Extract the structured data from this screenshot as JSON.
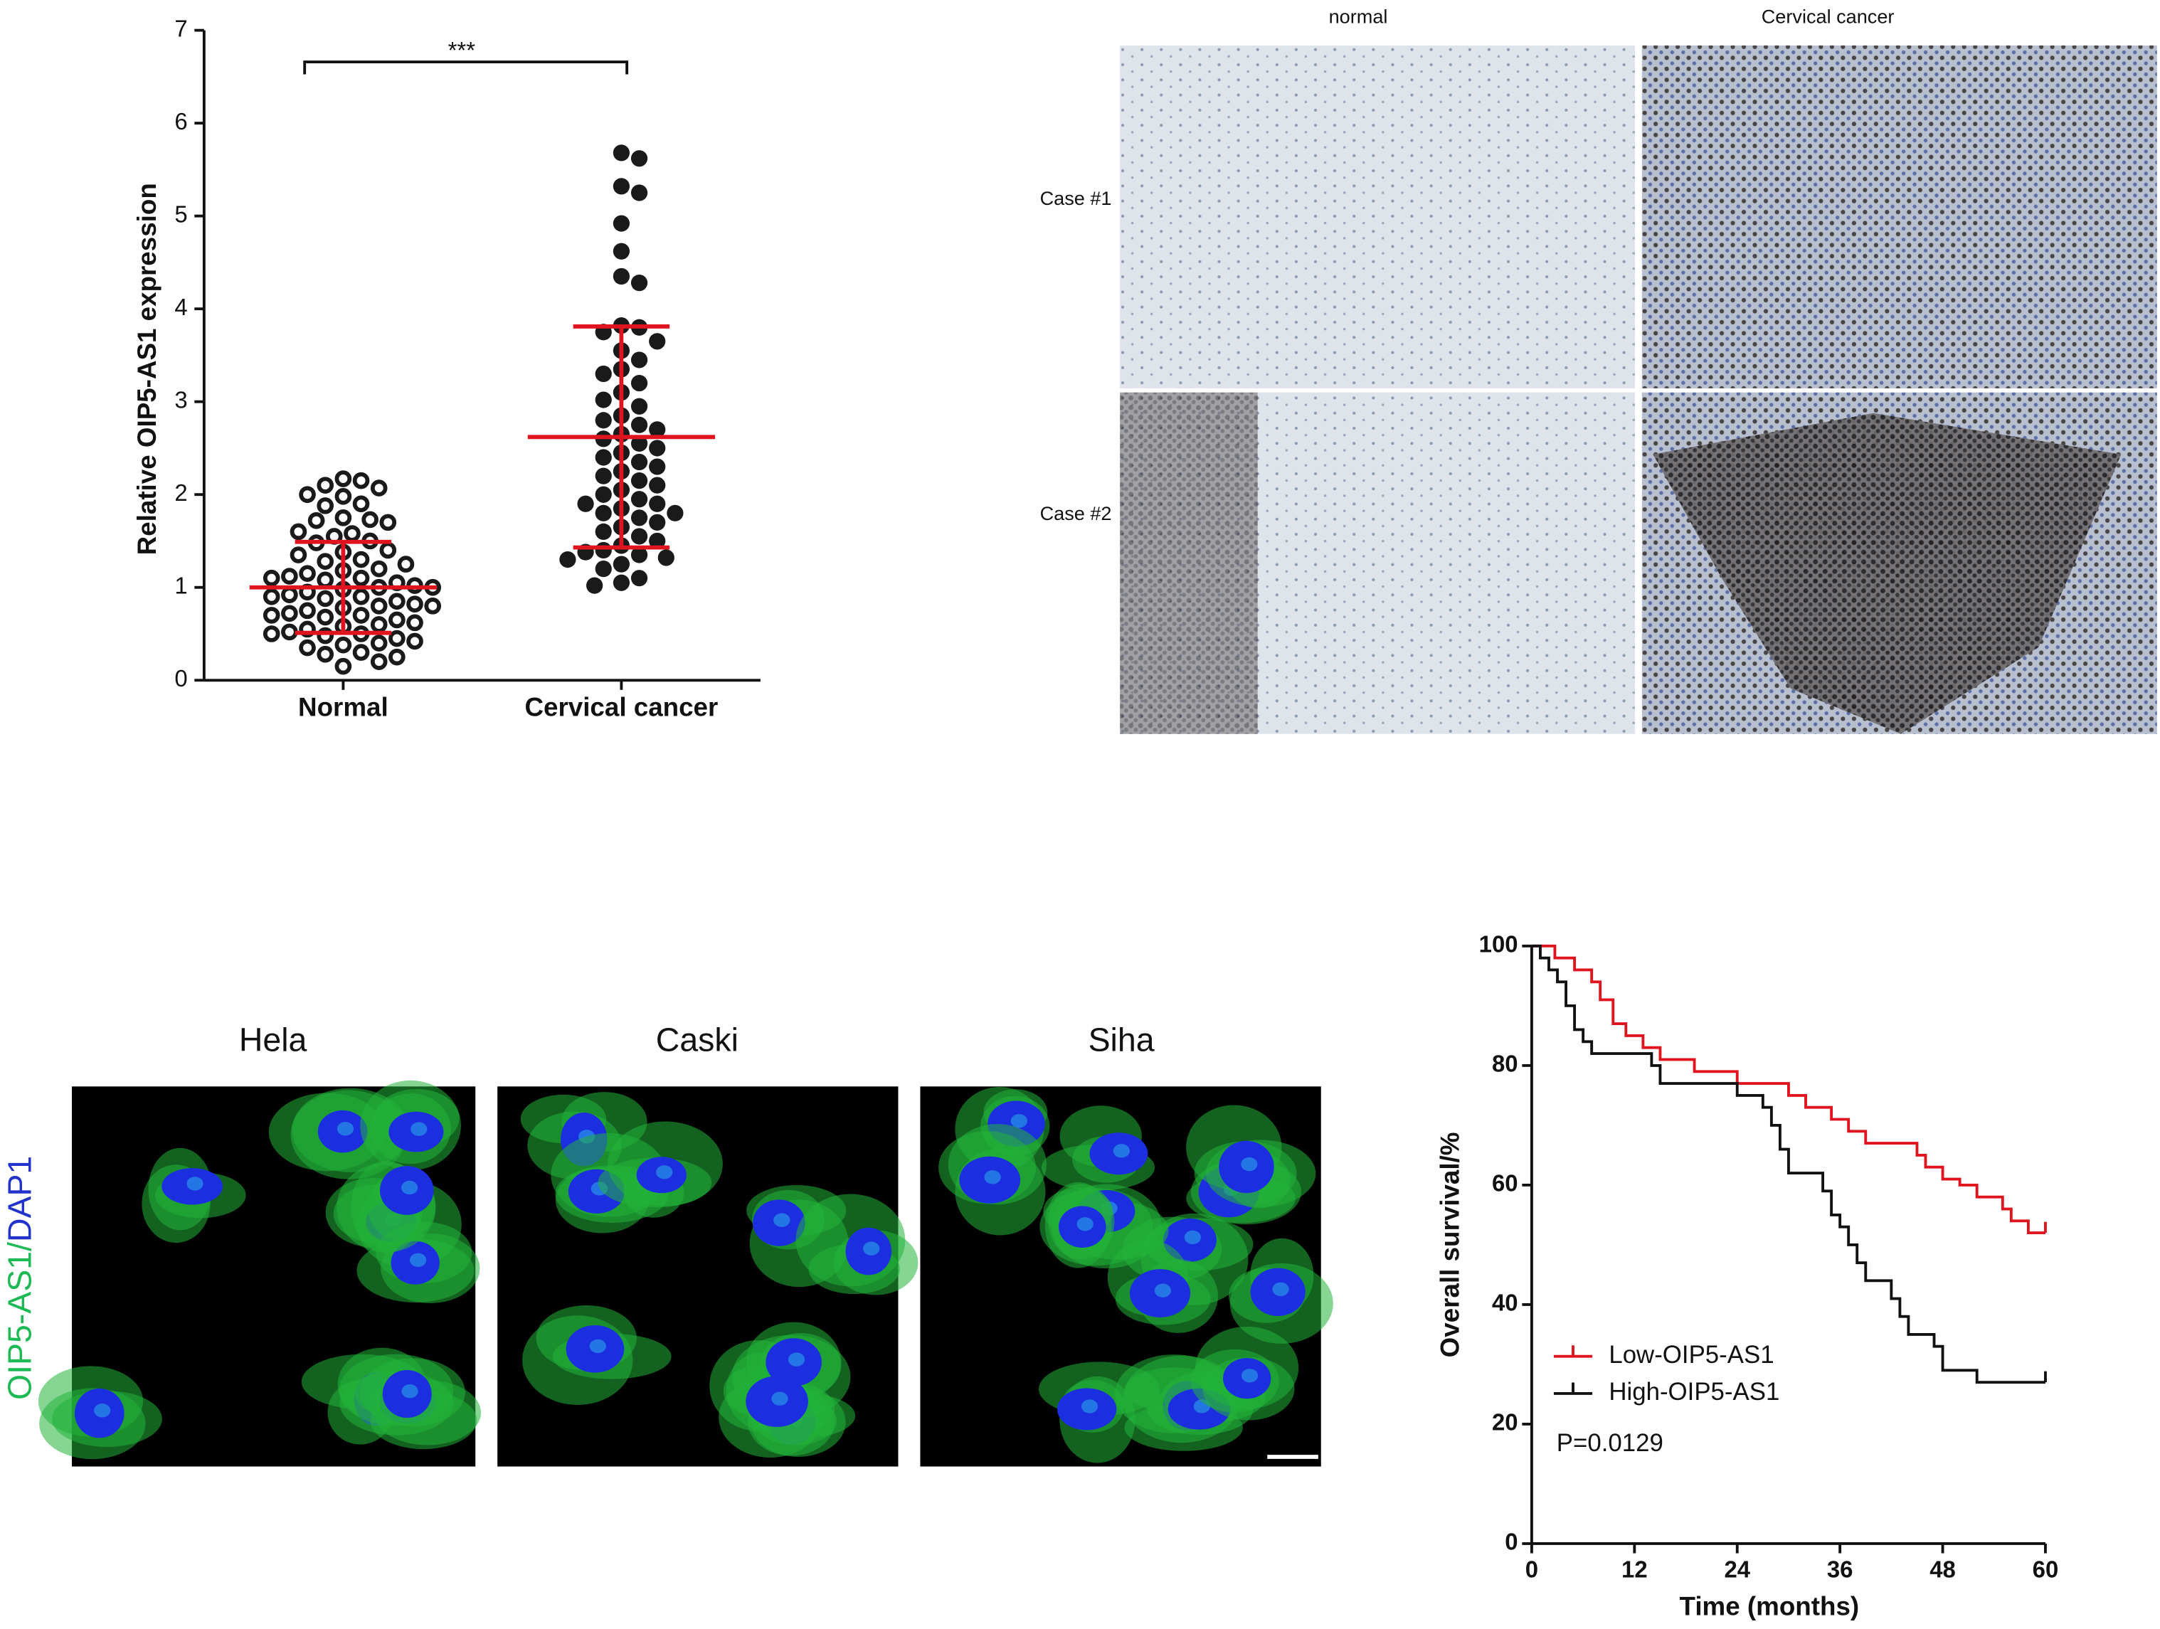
{
  "chart_data": [
    {
      "type": "dotplot",
      "ylabel": "Relative OIP5-AS1 expression",
      "annotation": "***",
      "categories": [
        "Normal",
        "Cervical cancer"
      ],
      "values": [
        [
          2.17,
          2.15,
          2.1,
          2.07,
          2.0,
          1.98,
          1.9,
          1.88,
          1.75,
          1.73,
          1.72,
          1.7,
          1.6,
          1.58,
          1.55,
          1.5,
          1.48,
          1.4,
          1.38,
          1.35,
          1.3,
          1.28,
          1.25,
          1.2,
          1.18,
          1.15,
          1.12,
          1.1,
          1.1,
          1.08,
          1.05,
          1.02,
          1.0,
          1.0,
          0.98,
          0.95,
          0.92,
          0.9,
          0.9,
          0.88,
          0.85,
          0.82,
          0.8,
          0.8,
          0.78,
          0.75,
          0.72,
          0.7,
          0.7,
          0.68,
          0.65,
          0.62,
          0.6,
          0.58,
          0.55,
          0.52,
          0.5,
          0.5,
          0.48,
          0.45,
          0.42,
          0.4,
          0.38,
          0.35,
          0.3,
          0.28,
          0.25,
          0.2,
          0.15
        ],
        [
          5.68,
          5.62,
          5.32,
          5.25,
          4.92,
          4.62,
          4.35,
          4.28,
          3.82,
          3.8,
          3.75,
          3.65,
          3.55,
          3.45,
          3.35,
          3.3,
          3.2,
          3.1,
          3.02,
          2.95,
          2.85,
          2.8,
          2.75,
          2.7,
          2.65,
          2.6,
          2.55,
          2.5,
          2.45,
          2.4,
          2.35,
          2.3,
          2.25,
          2.2,
          2.15,
          2.1,
          2.05,
          2.0,
          1.95,
          1.9,
          1.9,
          1.85,
          1.8,
          1.8,
          1.75,
          1.7,
          1.65,
          1.6,
          1.55,
          1.5,
          1.45,
          1.4,
          1.38,
          1.35,
          1.32,
          1.3,
          1.25,
          1.2,
          1.1,
          1.05,
          1.02
        ]
      ],
      "mean": [
        1.0,
        2.62
      ],
      "sd": [
        0.49,
        1.19
      ],
      "ylim": [
        0,
        7
      ],
      "yticks": [
        0,
        1,
        2,
        3,
        4,
        5,
        6,
        7
      ],
      "marker_fill": [
        "#ffffff",
        "#1a1a1a"
      ],
      "marker_edge": "#1a1a1a",
      "summary_color": "#e0141e"
    },
    {
      "type": "line",
      "step": true,
      "xlabel": "Time (months)",
      "ylabel": "Overall survival/%",
      "annotation": "P=0.0129",
      "xlim": [
        0,
        60
      ],
      "xticks": [
        0,
        12,
        24,
        36,
        48,
        60
      ],
      "ylim": [
        0,
        100
      ],
      "yticks": [
        0,
        20,
        40,
        60,
        80,
        100
      ],
      "series": [
        {
          "name": "Low-OIP5-AS1",
          "color": "#e0141e",
          "x": [
            0,
            2.7,
            5,
            7,
            8,
            9.5,
            11,
            13,
            15,
            19,
            24,
            30,
            32,
            35,
            37,
            39,
            45,
            46,
            48,
            50,
            52,
            55,
            56,
            58,
            60
          ],
          "values": [
            100,
            98,
            96,
            94,
            91,
            87,
            85,
            83,
            81,
            79,
            77,
            75,
            73,
            71,
            69,
            67,
            65,
            63,
            61,
            60,
            58,
            56,
            54,
            52,
            52
          ]
        },
        {
          "name": "High-OIP5-AS1",
          "color": "#111111",
          "x": [
            0,
            1,
            2,
            3,
            4,
            5,
            6,
            7,
            14,
            15,
            24,
            27,
            28,
            29,
            30,
            34,
            35,
            36,
            37,
            38,
            39,
            42,
            43,
            44,
            47,
            48,
            52,
            60
          ],
          "values": [
            100,
            98,
            96,
            94,
            90,
            86,
            84,
            82,
            80,
            77,
            75,
            73,
            70,
            66,
            62,
            59,
            55,
            53,
            50,
            47,
            44,
            41,
            38,
            35,
            33,
            29,
            27,
            27
          ]
        }
      ]
    }
  ],
  "histology": {
    "columns": [
      "normal",
      "Cervical cancer"
    ],
    "rows": [
      "Case #1",
      "Case #2"
    ]
  },
  "immunofluorescence": {
    "cell_lines": [
      "Hela",
      "Caski",
      "Siha"
    ],
    "stain": [
      "OIP5-AS1",
      "/",
      "DAP1"
    ]
  }
}
